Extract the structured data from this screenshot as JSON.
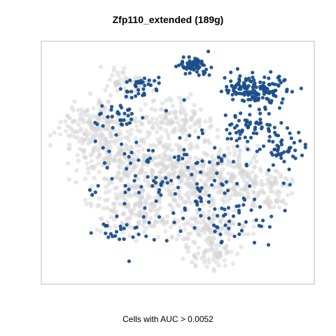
{
  "chart_data": {
    "type": "scatter",
    "title": "Zfp110_extended (189g)",
    "xlabel": "Cells with AUC > 0.0052",
    "ylabel": "",
    "grid": false,
    "colors": {
      "background_cells": "#d6d6d6",
      "highlight_cells": "#1a4e8c",
      "panel_border": "#bdbdbd"
    },
    "series": [
      {
        "name": "",
        "color": "#d6d6d6",
        "density_regions": [
          {
            "cx": 0.18,
            "cy": 0.35,
            "rx": 0.13,
            "ry": 0.12,
            "n": 160
          },
          {
            "cx": 0.3,
            "cy": 0.5,
            "rx": 0.16,
            "ry": 0.13,
            "n": 220
          },
          {
            "cx": 0.35,
            "cy": 0.7,
            "rx": 0.16,
            "ry": 0.1,
            "n": 170
          },
          {
            "cx": 0.52,
            "cy": 0.55,
            "rx": 0.14,
            "ry": 0.14,
            "n": 220
          },
          {
            "cx": 0.62,
            "cy": 0.78,
            "rx": 0.14,
            "ry": 0.08,
            "n": 120
          },
          {
            "cx": 0.68,
            "cy": 0.55,
            "rx": 0.16,
            "ry": 0.12,
            "n": 180
          },
          {
            "cx": 0.85,
            "cy": 0.62,
            "rx": 0.1,
            "ry": 0.08,
            "n": 90
          },
          {
            "cx": 0.48,
            "cy": 0.32,
            "rx": 0.16,
            "ry": 0.08,
            "n": 140
          },
          {
            "cx": 0.3,
            "cy": 0.15,
            "rx": 0.1,
            "ry": 0.05,
            "n": 50
          },
          {
            "cx": 0.63,
            "cy": 0.9,
            "rx": 0.09,
            "ry": 0.05,
            "n": 60
          }
        ]
      },
      {
        "name": "",
        "color": "#1a4e8c",
        "density_regions": [
          {
            "cx": 0.56,
            "cy": 0.08,
            "rx": 0.05,
            "ry": 0.04,
            "n": 70
          },
          {
            "cx": 0.8,
            "cy": 0.18,
            "rx": 0.11,
            "ry": 0.06,
            "n": 150
          },
          {
            "cx": 0.78,
            "cy": 0.35,
            "rx": 0.1,
            "ry": 0.06,
            "n": 60
          },
          {
            "cx": 0.9,
            "cy": 0.45,
            "rx": 0.08,
            "ry": 0.06,
            "n": 45
          },
          {
            "cx": 0.36,
            "cy": 0.17,
            "rx": 0.07,
            "ry": 0.05,
            "n": 35
          },
          {
            "cx": 0.26,
            "cy": 0.3,
            "rx": 0.07,
            "ry": 0.05,
            "n": 30
          },
          {
            "cx": 0.5,
            "cy": 0.55,
            "rx": 0.3,
            "ry": 0.25,
            "n": 130
          },
          {
            "cx": 0.3,
            "cy": 0.8,
            "rx": 0.1,
            "ry": 0.06,
            "n": 25
          },
          {
            "cx": 0.72,
            "cy": 0.75,
            "rx": 0.15,
            "ry": 0.1,
            "n": 40
          }
        ]
      }
    ]
  }
}
